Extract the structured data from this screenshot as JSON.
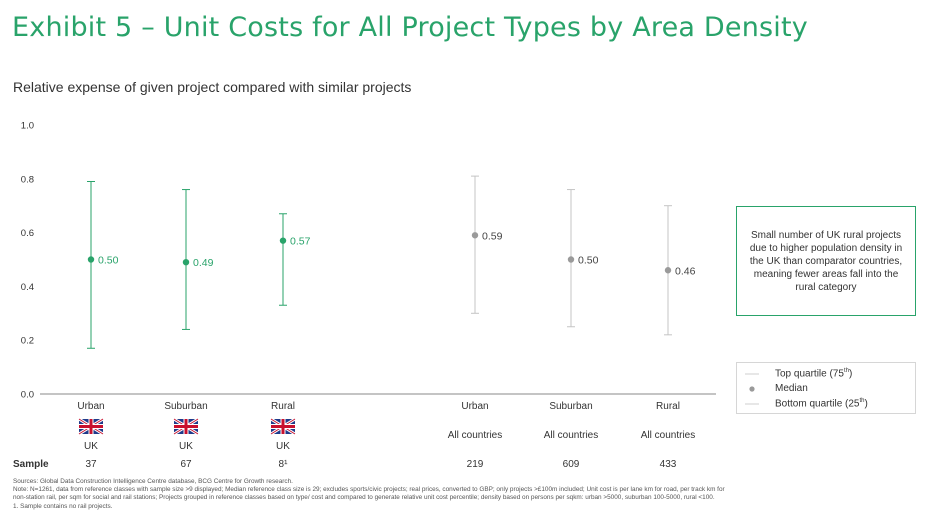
{
  "title": "Exhibit 5 – Unit Costs for All Project Types by Area Density",
  "subtitle": "Relative expense of given project compared with similar projects",
  "colors": {
    "uk": "#29a36a",
    "all": "#9a9a9a",
    "axis": "#8a8a8a",
    "title": "#29a36a"
  },
  "chart_data": {
    "type": "range",
    "ylim": [
      0.0,
      1.0
    ],
    "yticks": [
      "0.0",
      "0.2",
      "0.4",
      "0.6",
      "0.8",
      "1.0"
    ],
    "sample_label": "Sample",
    "groups": [
      {
        "name": "UK",
        "flag": "uk-flag-icon",
        "items": [
          {
            "category": "Urban",
            "region": "UK",
            "sample": "37",
            "q1": 0.17,
            "median": 0.5,
            "q3": 0.79,
            "label": "0.50"
          },
          {
            "category": "Suburban",
            "region": "UK",
            "sample": "67",
            "q1": 0.24,
            "median": 0.49,
            "q3": 0.76,
            "label": "0.49"
          },
          {
            "category": "Rural",
            "region": "UK",
            "sample": "8¹",
            "q1": 0.33,
            "median": 0.57,
            "q3": 0.67,
            "label": "0.57"
          }
        ]
      },
      {
        "name": "All countries",
        "flag": "",
        "items": [
          {
            "category": "Urban",
            "region": "All countries",
            "sample": "219",
            "q1": 0.3,
            "median": 0.59,
            "q3": 0.81,
            "label": "0.59"
          },
          {
            "category": "Suburban",
            "region": "All countries",
            "sample": "609",
            "q1": 0.25,
            "median": 0.5,
            "q3": 0.76,
            "label": "0.50"
          },
          {
            "category": "Rural",
            "region": "All countries",
            "sample": "433",
            "q1": 0.22,
            "median": 0.46,
            "q3": 0.7,
            "label": "0.46"
          }
        ]
      }
    ],
    "legend": [
      {
        "symbol": "line",
        "label": "Top quartile (75",
        "sup": "th",
        "tail": ")"
      },
      {
        "symbol": "dot",
        "label": "Median",
        "sup": "",
        "tail": ""
      },
      {
        "symbol": "line",
        "label": "Bottom quartile (25",
        "sup": "th",
        "tail": ")"
      }
    ],
    "annotation": "Small number of UK rural projects due to higher population density in the UK than comparator countries, meaning fewer areas fall into the rural category"
  },
  "footer": {
    "sources": "Sources: Global Data Construction Intelligence Centre database, BCG Centre for Growth research.",
    "note1": "Note:  N=1261, data from reference classes with sample size >9 displayed; Median reference class size is 29; excludes sports/civic projects; real prices, converted to GBP; only projects >£100m included; Unit cost is per lane km for road, per track km for",
    "note2": "non-station rail, per sqm for social and rail stations; Projects grouped in reference classes based on type/ cost and compared to generate relative unit cost percentile; density based on persons per sqkm: urban >5000, suburban 100-5000, rural <100.",
    "note3": "1.   Sample contains no rail projects."
  }
}
